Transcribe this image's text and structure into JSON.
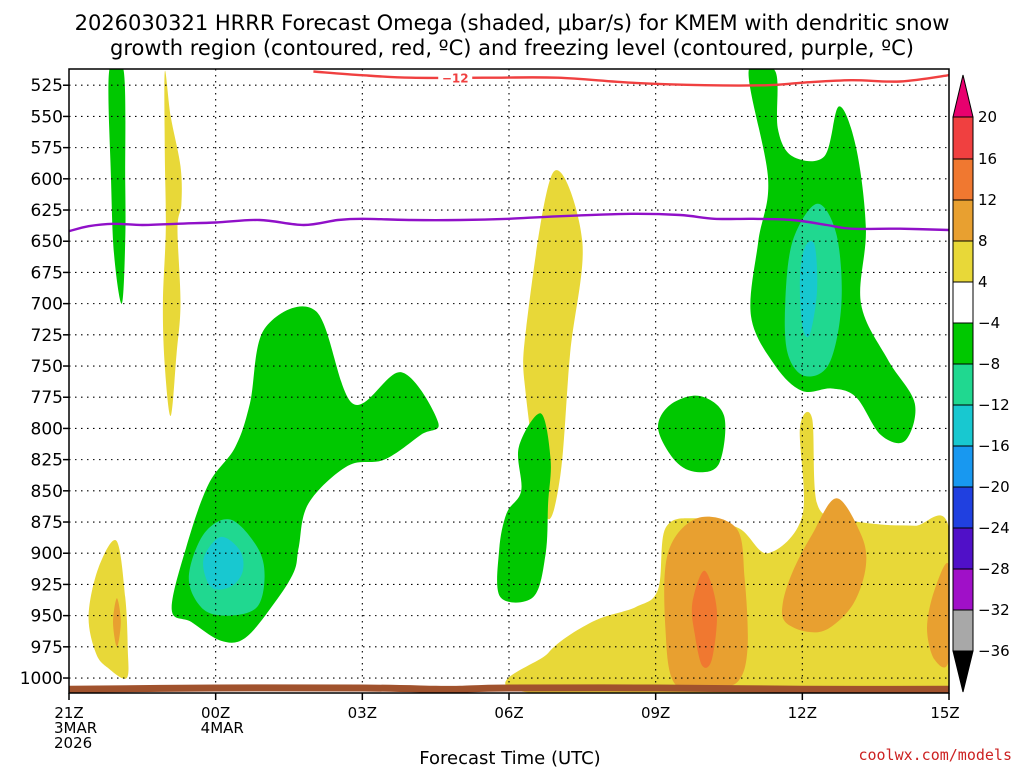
{
  "chart_data": {
    "type": "contour",
    "title_lines": [
      "2026030321 HRRR Forecast Omega (shaded, μbar/s) for KMEM with dendritic snow",
      "growth region (contoured, red, ºC) and freezing level (contoured, purple, ºC)"
    ],
    "xlabel": "Forecast Time (UTC)",
    "xlim": [
      0,
      18
    ],
    "ylim": [
      512,
      1012
    ],
    "x_ticks": [
      {
        "x": 0,
        "lines": [
          "21Z",
          "3MAR",
          "2026"
        ]
      },
      {
        "x": 3,
        "lines": [
          "00Z",
          "4MAR"
        ]
      },
      {
        "x": 6,
        "lines": [
          "03Z"
        ]
      },
      {
        "x": 9,
        "lines": [
          "06Z"
        ]
      },
      {
        "x": 12,
        "lines": [
          "09Z"
        ]
      },
      {
        "x": 15,
        "lines": [
          "12Z"
        ]
      },
      {
        "x": 18,
        "lines": [
          "15Z"
        ]
      }
    ],
    "pressure_levels": [
      525,
      550,
      575,
      600,
      625,
      650,
      675,
      700,
      725,
      750,
      775,
      800,
      825,
      850,
      875,
      900,
      925,
      950,
      975,
      1000
    ],
    "colorbar": {
      "labels": [
        "20",
        "16",
        "12",
        "8",
        "4",
        "−4",
        "−8",
        "−12",
        "−16",
        "−20",
        "−24",
        "−28",
        "−32",
        "−36"
      ],
      "colors": [
        "#e8006e",
        "#f04040",
        "#f07830",
        "#e8a030",
        "#e8d838",
        "#ffffff",
        "#00c800",
        "#20d890",
        "#18c8d0",
        "#1898f0",
        "#2040e0",
        "#5010c8",
        "#a010c8",
        "#a8a8a8",
        "#000000"
      ]
    },
    "regions": [
      {
        "name": "green",
        "color": "#00c800",
        "points": [
          [
            0.82,
            514
          ],
          [
            1.12,
            514
          ],
          [
            1.15,
            600
          ],
          [
            1.15,
            650
          ],
          [
            1.08,
            700
          ],
          [
            0.92,
            660
          ],
          [
            0.86,
            600
          ]
        ]
      },
      {
        "name": "yellow",
        "color": "#e8d838",
        "points": [
          [
            1.96,
            514
          ],
          [
            2.08,
            550
          ],
          [
            2.28,
            590
          ],
          [
            2.3,
            620
          ],
          [
            2.22,
            640
          ],
          [
            2.28,
            700
          ],
          [
            2.2,
            740
          ],
          [
            2.08,
            790
          ],
          [
            1.96,
            750
          ],
          [
            1.92,
            700
          ],
          [
            1.98,
            640
          ],
          [
            1.96,
            580
          ]
        ]
      },
      {
        "name": "green",
        "color": "#00c800",
        "points": [
          [
            2.1,
            945
          ],
          [
            2.4,
            895
          ],
          [
            2.85,
            845
          ],
          [
            3.4,
            815
          ],
          [
            3.7,
            780
          ],
          [
            4,
            720
          ],
          [
            5.05,
            706
          ],
          [
            5.8,
            780
          ],
          [
            6.8,
            755
          ],
          [
            7.55,
            795
          ],
          [
            7.2,
            805
          ],
          [
            6.45,
            825
          ],
          [
            5.7,
            830
          ],
          [
            4.9,
            860
          ],
          [
            4.7,
            895
          ],
          [
            4.6,
            915
          ],
          [
            4.2,
            940
          ],
          [
            3.6,
            968
          ],
          [
            3.1,
            970
          ],
          [
            2.5,
            955
          ]
        ]
      },
      {
        "name": "teal",
        "color": "#20d890",
        "points": [
          [
            2.45,
            920
          ],
          [
            2.75,
            885
          ],
          [
            3.3,
            873
          ],
          [
            3.85,
            895
          ],
          [
            4,
            918
          ],
          [
            3.85,
            943
          ],
          [
            3.3,
            950
          ],
          [
            2.75,
            945
          ]
        ]
      },
      {
        "name": "cyan",
        "color": "#18c8d0",
        "points": [
          [
            2.75,
            905
          ],
          [
            3.1,
            887
          ],
          [
            3.5,
            898
          ],
          [
            3.55,
            915
          ],
          [
            3.3,
            927
          ],
          [
            2.9,
            927
          ]
        ]
      },
      {
        "name": "yellow",
        "color": "#e8d838",
        "points": [
          [
            0.4,
            950
          ],
          [
            0.6,
            912
          ],
          [
            0.97,
            890
          ],
          [
            1.15,
            935
          ],
          [
            1.2,
            975
          ],
          [
            1.18,
            1000
          ],
          [
            0.8,
            992
          ],
          [
            0.55,
            980
          ]
        ]
      },
      {
        "name": "orange",
        "color": "#e8a030",
        "points": [
          [
            0.98,
            936
          ],
          [
            1.06,
            955
          ],
          [
            0.98,
            975
          ],
          [
            0.9,
            955
          ]
        ]
      },
      {
        "name": "yellow",
        "color": "#e8d838",
        "points": [
          [
            9.35,
            720
          ],
          [
            9.9,
            595
          ],
          [
            10.5,
            650
          ],
          [
            10.25,
            740
          ],
          [
            10.05,
            838
          ],
          [
            9.75,
            870
          ],
          [
            9.35,
            775
          ]
        ]
      },
      {
        "name": "green",
        "color": "#00c800",
        "points": [
          [
            8.8,
            897
          ],
          [
            8.95,
            868
          ],
          [
            9.25,
            850
          ],
          [
            9.2,
            815
          ],
          [
            9.65,
            788
          ],
          [
            9.85,
            825
          ],
          [
            9.8,
            860
          ],
          [
            9.75,
            900
          ],
          [
            9.5,
            935
          ],
          [
            8.82,
            935
          ]
        ]
      },
      {
        "name": "green",
        "color": "#00c800",
        "points": [
          [
            12.05,
            800
          ],
          [
            12.3,
            781
          ],
          [
            12.9,
            774
          ],
          [
            13.4,
            790
          ],
          [
            13.3,
            828
          ],
          [
            12.85,
            835
          ],
          [
            12.4,
            826
          ]
        ]
      },
      {
        "name": "green",
        "color": "#00c800",
        "points": [
          [
            13.9,
            514
          ],
          [
            14.45,
            514
          ],
          [
            14.5,
            560
          ],
          [
            14.8,
            582
          ],
          [
            15.45,
            582
          ],
          [
            15.75,
            542
          ],
          [
            16.1,
            575
          ],
          [
            16.3,
            640
          ],
          [
            16.2,
            700
          ],
          [
            16.75,
            745
          ],
          [
            17.3,
            780
          ],
          [
            17.1,
            810
          ],
          [
            16.6,
            805
          ],
          [
            16.1,
            775
          ],
          [
            15.6,
            768
          ],
          [
            15,
            770
          ],
          [
            14.45,
            750
          ],
          [
            13.95,
            710
          ],
          [
            14.1,
            650
          ],
          [
            14.3,
            600
          ]
        ]
      },
      {
        "name": "teal",
        "color": "#20d890",
        "points": [
          [
            14.65,
            700
          ],
          [
            14.8,
            650
          ],
          [
            15.3,
            620
          ],
          [
            15.7,
            645
          ],
          [
            15.8,
            700
          ],
          [
            15.55,
            748
          ],
          [
            15.05,
            758
          ],
          [
            14.7,
            740
          ]
        ]
      },
      {
        "name": "cyan",
        "color": "#18c8d0",
        "points": [
          [
            14.95,
            680
          ],
          [
            15.05,
            655
          ],
          [
            15.25,
            653
          ],
          [
            15.3,
            690
          ],
          [
            15.15,
            725
          ],
          [
            15,
            718
          ]
        ]
      },
      {
        "name": "yellow",
        "color": "#e8d838",
        "points": [
          [
            9.5,
            1012
          ],
          [
            9.8,
            980
          ],
          [
            10.7,
            955
          ],
          [
            11.6,
            943
          ],
          [
            12.05,
            929
          ],
          [
            12.2,
            880
          ],
          [
            12.8,
            872
          ],
          [
            13.7,
            880
          ],
          [
            14.3,
            900
          ],
          [
            15.0,
            870
          ],
          [
            14.95,
            800
          ],
          [
            15.2,
            792
          ],
          [
            15.3,
            860
          ],
          [
            15.8,
            872
          ],
          [
            16.6,
            877
          ],
          [
            17.3,
            878
          ],
          [
            18,
            880
          ],
          [
            18,
            1012
          ]
        ]
      },
      {
        "name": "orange",
        "color": "#e8a030",
        "points": [
          [
            12.4,
            1005
          ],
          [
            12.2,
            960
          ],
          [
            12.25,
            900
          ],
          [
            12.85,
            872
          ],
          [
            13.65,
            880
          ],
          [
            13.82,
            920
          ],
          [
            13.88,
            975
          ],
          [
            13.7,
            1002
          ],
          [
            13.2,
            1008
          ]
        ]
      },
      {
        "name": "orange",
        "color": "#e8a030",
        "points": [
          [
            14.6,
            940
          ],
          [
            14.8,
            915
          ],
          [
            15.2,
            885
          ],
          [
            15.7,
            856
          ],
          [
            16.2,
            885
          ],
          [
            16.3,
            910
          ],
          [
            16.05,
            940
          ],
          [
            15.55,
            960
          ],
          [
            15.1,
            963
          ],
          [
            14.65,
            955
          ]
        ]
      },
      {
        "name": "orange",
        "color": "#e8a030",
        "points": [
          [
            17.55,
            960
          ],
          [
            17.7,
            930
          ],
          [
            18,
            910
          ],
          [
            18,
            985
          ],
          [
            17.7,
            985
          ]
        ]
      },
      {
        "name": "orange-deep",
        "color": "#f07830",
        "points": [
          [
            12.75,
            940
          ],
          [
            13.0,
            914
          ],
          [
            13.25,
            945
          ],
          [
            13.15,
            985
          ],
          [
            12.95,
            990
          ],
          [
            12.8,
            965
          ]
        ]
      }
    ],
    "lines": [
      {
        "name": "dendritic snow growth -12 C",
        "color": "#f04040",
        "label": "−12",
        "points": [
          [
            5,
            514
          ],
          [
            6,
            517
          ],
          [
            7,
            519
          ],
          [
            8.5,
            519
          ],
          [
            10,
            519
          ],
          [
            11.5,
            523
          ],
          [
            13,
            525
          ],
          [
            14.3,
            525
          ],
          [
            15,
            523
          ],
          [
            16,
            521
          ],
          [
            17,
            522
          ],
          [
            18,
            517
          ]
        ]
      },
      {
        "name": "freezing level 0 C",
        "color": "#9010c8",
        "points": [
          [
            0,
            642
          ],
          [
            0.4,
            638
          ],
          [
            0.9,
            636
          ],
          [
            1.5,
            637
          ],
          [
            2.2,
            636
          ],
          [
            3,
            635
          ],
          [
            3.9,
            633
          ],
          [
            4.8,
            637
          ],
          [
            5.5,
            633
          ],
          [
            6,
            632
          ],
          [
            7,
            633
          ],
          [
            8,
            633
          ],
          [
            9,
            632
          ],
          [
            10,
            630
          ],
          [
            11.5,
            628
          ],
          [
            12.5,
            629
          ],
          [
            13.2,
            632
          ],
          [
            14,
            632
          ],
          [
            14.8,
            633
          ],
          [
            15.5,
            637
          ],
          [
            16,
            640
          ],
          [
            17,
            640
          ],
          [
            18,
            641
          ]
        ]
      },
      {
        "name": "surface terrain",
        "color": "#a0522d",
        "points": [
          [
            0,
            1009
          ],
          [
            3,
            1008
          ],
          [
            6,
            1008
          ],
          [
            7.5,
            1009
          ],
          [
            8,
            1009
          ],
          [
            9,
            1008
          ],
          [
            12,
            1008
          ],
          [
            15,
            1009
          ],
          [
            18,
            1009
          ]
        ]
      }
    ]
  },
  "credit": "coolwx.com/models"
}
